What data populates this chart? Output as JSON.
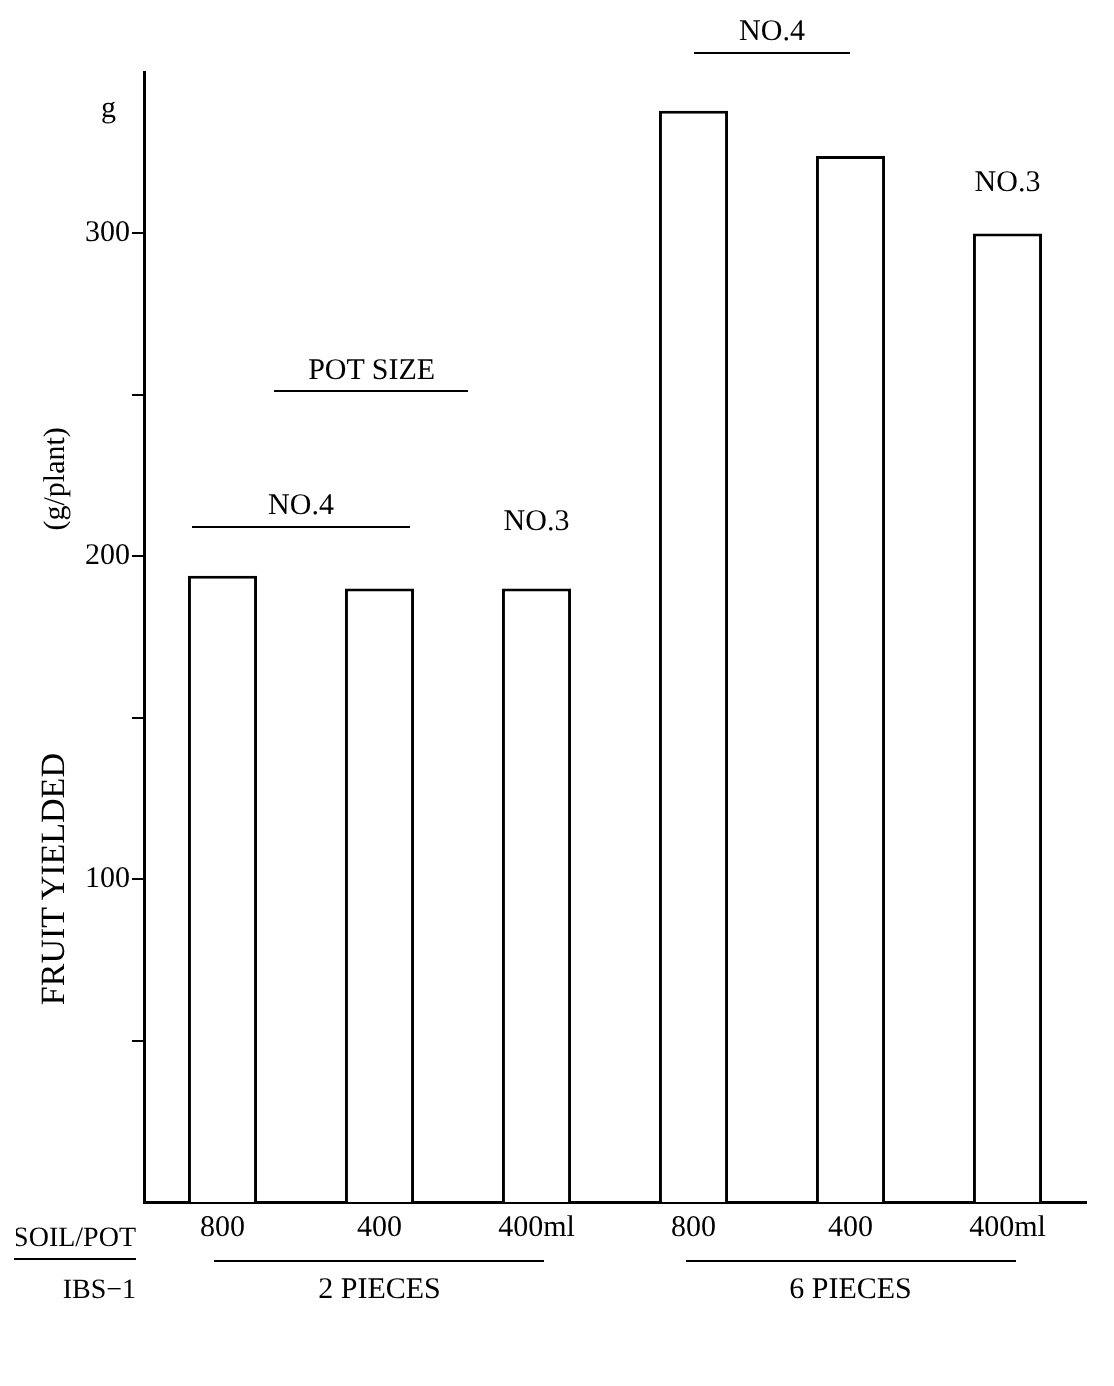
{
  "chart_data": {
    "type": "bar",
    "ylabel": "FRUIT YIELDED",
    "categories": [
      "800",
      "400",
      "400ml",
      "800",
      "400",
      "400ml"
    ],
    "values": [
      194,
      190,
      190,
      338,
      324,
      300
    ],
    "color": "#ffffff",
    "ylim": [
      0,
      350
    ],
    "yticks": [
      {
        "value": 50,
        "label": null
      },
      100,
      {
        "value": 150,
        "label": null
      },
      200,
      {
        "value": 250,
        "label": null
      },
      300
    ],
    "grid": false,
    "legend": false,
    "annotations": [
      "POT SIZE",
      "NO.4",
      "NO.3",
      "NO.4",
      "NO.3",
      "SOIL/POT",
      "IBS−1",
      "2 PIECES",
      "6 PIECES",
      "g",
      "(g/plant)"
    ]
  }
}
